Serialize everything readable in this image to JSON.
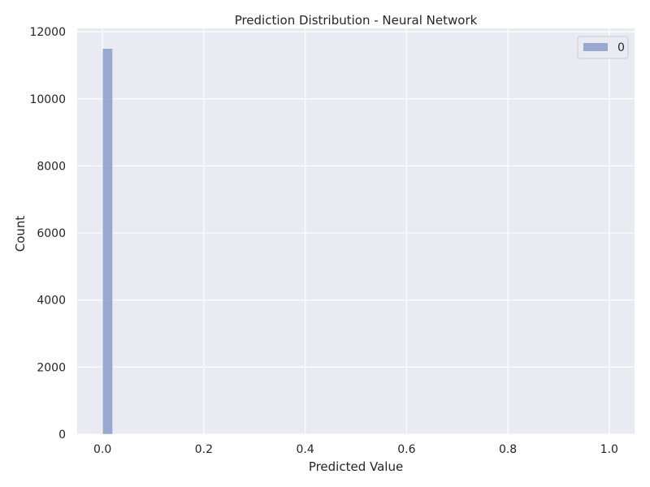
{
  "chart_data": {
    "type": "bar",
    "title": "Prediction Distribution - Neural Network",
    "xlabel": "Predicted Value",
    "ylabel": "Count",
    "xlim": [
      -0.05,
      1.05
    ],
    "ylim": [
      0,
      12100
    ],
    "xticks": [
      0.0,
      0.2,
      0.4,
      0.6,
      0.8,
      1.0
    ],
    "xtick_labels": [
      "0.0",
      "0.2",
      "0.4",
      "0.6",
      "0.8",
      "1.0"
    ],
    "yticks": [
      0,
      2000,
      4000,
      6000,
      8000,
      10000,
      12000
    ],
    "ytick_labels": [
      "0",
      "2000",
      "4000",
      "6000",
      "8000",
      "10000",
      "12000"
    ],
    "grid": true,
    "legend": {
      "placement": "top-right",
      "entries": [
        {
          "label": "0",
          "color": "#8a9cc9"
        }
      ]
    },
    "series": [
      {
        "name": "0",
        "color": "#8a9cc9",
        "bins": [
          {
            "x0": 0.0,
            "x1": 0.02,
            "value": 11500
          }
        ]
      }
    ]
  }
}
